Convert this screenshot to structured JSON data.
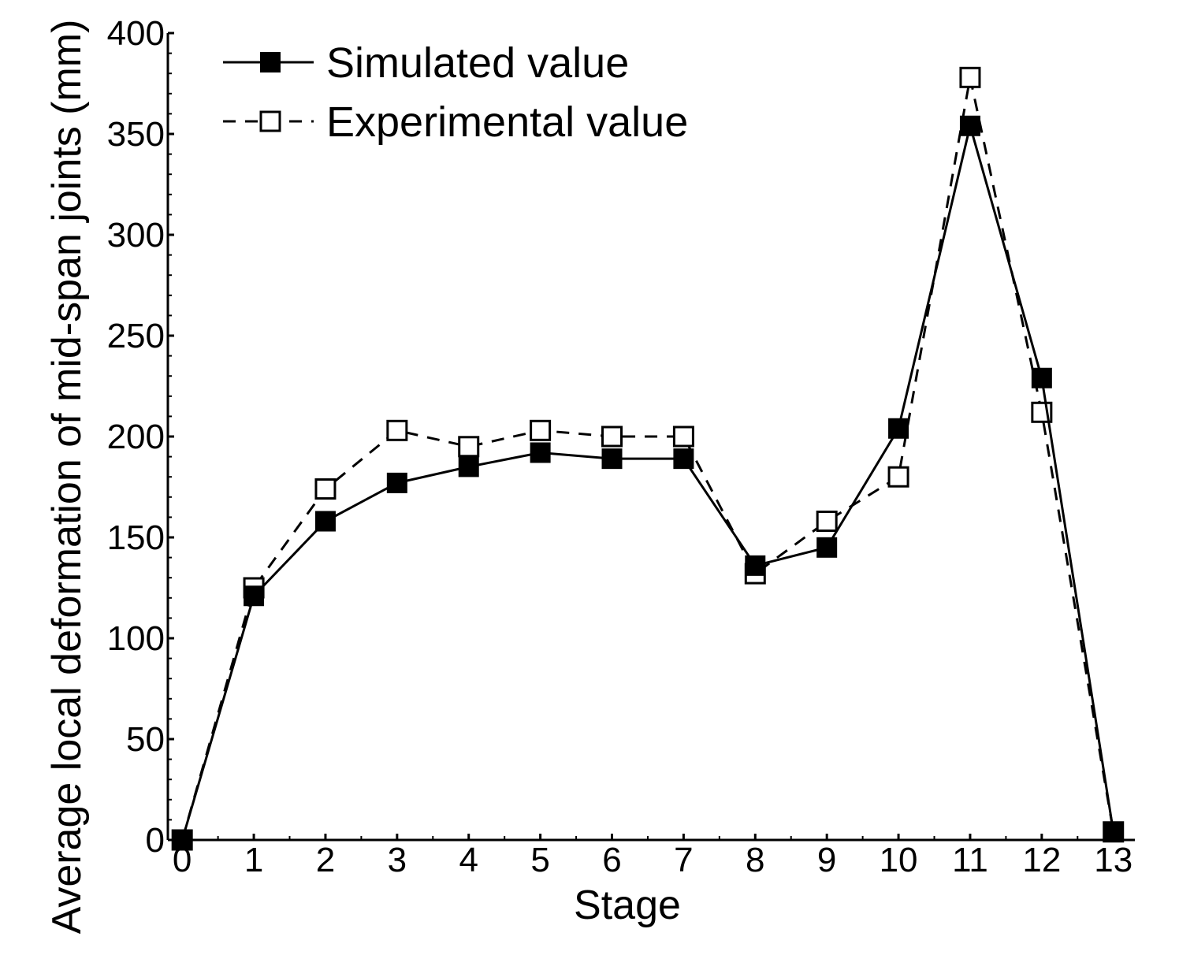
{
  "chart_data": {
    "type": "line",
    "title": "",
    "xlabel": "Stage",
    "ylabel": "Average local deformation of mid-span joints (mm)",
    "x": [
      0,
      1,
      2,
      3,
      4,
      5,
      6,
      7,
      8,
      9,
      10,
      11,
      12,
      13
    ],
    "x_tick_labels": [
      "0",
      "1",
      "2",
      "3",
      "4",
      "5",
      "6",
      "7",
      "8",
      "9",
      "10",
      "11",
      "12",
      "13"
    ],
    "y_tick_labels": [
      "0",
      "50",
      "100",
      "150",
      "200",
      "250",
      "300",
      "350",
      "400"
    ],
    "ylim": [
      0,
      400
    ],
    "xlim": [
      -0.2,
      13.3
    ],
    "grid": false,
    "legend_position": "top-left",
    "series": [
      {
        "name": "Simulated value",
        "line_style": "solid",
        "marker": "filled-square",
        "color": "#000000",
        "values": [
          0,
          121,
          158,
          177,
          185,
          192,
          189,
          189,
          136,
          145,
          204,
          354,
          229,
          4
        ]
      },
      {
        "name": "Experimental value",
        "line_style": "dashed",
        "marker": "open-square",
        "color": "#000000",
        "values": [
          0,
          125,
          174,
          203,
          195,
          203,
          200,
          200,
          132,
          158,
          180,
          378,
          212,
          4
        ]
      }
    ]
  }
}
